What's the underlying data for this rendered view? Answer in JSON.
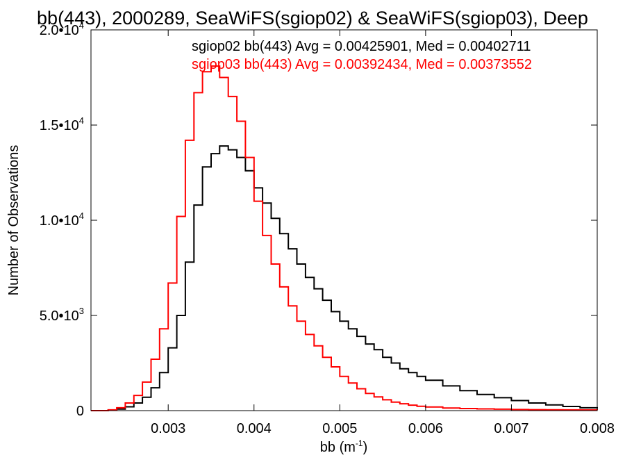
{
  "chart_data": {
    "type": "line",
    "title": "bb(443), 2000289, SeaWiFS(sgiop02) & SeaWiFS(sgiop03), Deep",
    "xlabel": "bb (m",
    "xlabel_sup": "-1",
    "xlabel_suffix": ")",
    "ylabel": "Number of Observations",
    "xlim": [
      0.0021,
      0.008
    ],
    "ylim": [
      0,
      20000
    ],
    "x_ticks": [
      {
        "value": 0.003,
        "label": "0.003"
      },
      {
        "value": 0.004,
        "label": "0.004"
      },
      {
        "value": 0.005,
        "label": "0.005"
      },
      {
        "value": 0.006,
        "label": "0.006"
      },
      {
        "value": 0.007,
        "label": "0.007"
      },
      {
        "value": 0.008,
        "label": "0.008"
      }
    ],
    "y_ticks": [
      {
        "value": 0,
        "mant": "0",
        "exp": ""
      },
      {
        "value": 5000,
        "mant": "5.0•10",
        "exp": "3"
      },
      {
        "value": 10000,
        "mant": "1.0•10",
        "exp": "4"
      },
      {
        "value": 15000,
        "mant": "1.5•10",
        "exp": "4"
      },
      {
        "value": 20000,
        "mant": "2.0•10",
        "exp": "4"
      }
    ],
    "grid": false,
    "legend_position": "top-right",
    "series": [
      {
        "name": "sgiop02",
        "color": "#000000",
        "label": "sgiop02 bb(443) Avg = 0.00425901, Med = 0.00402711",
        "x": [
          0.0021,
          0.0023,
          0.0024,
          0.0025,
          0.0026,
          0.0027,
          0.0028,
          0.0029,
          0.003,
          0.0031,
          0.0032,
          0.0033,
          0.0034,
          0.0035,
          0.0036,
          0.0037,
          0.0038,
          0.0039,
          0.004,
          0.0041,
          0.0042,
          0.0043,
          0.0044,
          0.0045,
          0.0046,
          0.0047,
          0.0048,
          0.0049,
          0.005,
          0.0051,
          0.0052,
          0.0053,
          0.0054,
          0.0055,
          0.0056,
          0.0057,
          0.0058,
          0.0059,
          0.006,
          0.0062,
          0.0064,
          0.0066,
          0.0068,
          0.007,
          0.0072,
          0.0074,
          0.0076,
          0.0078,
          0.008
        ],
        "y": [
          0,
          20,
          80,
          200,
          400,
          700,
          1200,
          2000,
          3300,
          5000,
          7800,
          10800,
          12800,
          13500,
          13900,
          13700,
          13300,
          12600,
          11700,
          10900,
          10100,
          9300,
          8500,
          7700,
          7000,
          6400,
          5800,
          5200,
          4700,
          4300,
          3900,
          3500,
          3200,
          2800,
          2500,
          2200,
          2000,
          1800,
          1600,
          1300,
          1050,
          850,
          680,
          530,
          400,
          300,
          220,
          150,
          100
        ]
      },
      {
        "name": "sgiop03",
        "color": "#ff0000",
        "label": "sgiop03 bb(443) Avg = 0.00392434, Med = 0.00373552",
        "x": [
          0.0021,
          0.0023,
          0.0024,
          0.0025,
          0.0026,
          0.0027,
          0.0028,
          0.0029,
          0.003,
          0.0031,
          0.0032,
          0.0033,
          0.0034,
          0.0035,
          0.0036,
          0.0037,
          0.0038,
          0.0039,
          0.004,
          0.0041,
          0.0042,
          0.0043,
          0.0044,
          0.0045,
          0.0046,
          0.0047,
          0.0048,
          0.0049,
          0.005,
          0.0051,
          0.0052,
          0.0053,
          0.0054,
          0.0055,
          0.0056,
          0.0057,
          0.0058,
          0.0059,
          0.006,
          0.0062,
          0.0064,
          0.0066,
          0.0068,
          0.007,
          0.0072,
          0.0074,
          0.0076,
          0.0078,
          0.008
        ],
        "y": [
          0,
          40,
          150,
          400,
          800,
          1500,
          2700,
          4300,
          6700,
          10200,
          14200,
          16700,
          17800,
          18100,
          17500,
          16500,
          15200,
          13300,
          11000,
          9200,
          7700,
          6500,
          5500,
          4700,
          4000,
          3400,
          2800,
          2300,
          1800,
          1450,
          1150,
          900,
          720,
          570,
          450,
          360,
          290,
          230,
          190,
          140,
          110,
          90,
          75,
          60,
          50,
          45,
          40,
          35,
          30
        ]
      }
    ]
  }
}
